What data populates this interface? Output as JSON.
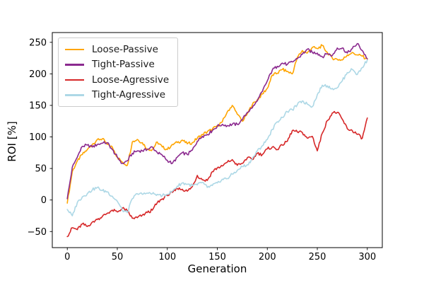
{
  "chart_data": {
    "type": "line",
    "title": "",
    "xlabel": "Generation",
    "ylabel": "ROI [%]",
    "xlim": [
      -15,
      315
    ],
    "ylim": [
      -75.5,
      265.5
    ],
    "grid": false,
    "legend_position": "upper-left",
    "xtick_values": [
      0,
      50,
      100,
      150,
      200,
      250,
      300
    ],
    "xtick_labels": [
      "0",
      "50",
      "100",
      "150",
      "200",
      "250",
      "300"
    ],
    "ytick_values": [
      -50,
      0,
      50,
      100,
      150,
      200,
      250
    ],
    "ytick_labels": [
      "−50",
      "0",
      "50",
      "100",
      "150",
      "200",
      "250"
    ],
    "x": [
      0,
      5,
      10,
      15,
      20,
      25,
      30,
      35,
      40,
      45,
      50,
      55,
      60,
      65,
      70,
      75,
      80,
      85,
      90,
      95,
      100,
      105,
      110,
      115,
      120,
      125,
      130,
      135,
      140,
      145,
      150,
      155,
      160,
      165,
      170,
      175,
      180,
      185,
      190,
      195,
      200,
      205,
      210,
      215,
      220,
      225,
      230,
      235,
      240,
      245,
      250,
      255,
      260,
      265,
      270,
      275,
      280,
      285,
      290,
      295,
      300
    ],
    "series": [
      {
        "name": "Loose-Passive",
        "color": "#ffa500",
        "values": [
          -5,
          45,
          62,
          72,
          80,
          88,
          96,
          97,
          88,
          84,
          68,
          60,
          55,
          92,
          96,
          91,
          81,
          80,
          92,
          84,
          80,
          88,
          91,
          95,
          89,
          91,
          98,
          104,
          108,
          112,
          118,
          124,
          140,
          150,
          136,
          125,
          137,
          151,
          159,
          168,
          177,
          198,
          201,
          207,
          204,
          200,
          226,
          237,
          233,
          242,
          240,
          245,
          234,
          225,
          223,
          222,
          230,
          234,
          230,
          228,
          223
        ]
      },
      {
        "name": "Tight-Passive",
        "color": "#8b2a8f",
        "values": [
          2,
          52,
          68,
          85,
          87,
          84,
          88,
          90,
          91,
          80,
          68,
          58,
          62,
          74,
          78,
          78,
          80,
          84,
          75,
          71,
          63,
          58,
          68,
          75,
          72,
          79,
          93,
          101,
          104,
          110,
          117,
          120,
          118,
          120,
          120,
          127,
          139,
          146,
          157,
          172,
          189,
          206,
          212,
          217,
          215,
          219,
          224,
          231,
          239,
          234,
          233,
          227,
          232,
          229,
          241,
          241,
          233,
          240,
          248,
          237,
          224
        ]
      },
      {
        "name": "Loose-Agressive",
        "color": "#d62728",
        "values": [
          -58,
          -44,
          -47,
          -38,
          -42,
          -35,
          -31,
          -26,
          -21,
          -16,
          -19,
          -13,
          -17,
          -29,
          -28,
          -24,
          -20,
          -16,
          -4,
          2,
          7,
          12,
          18,
          17,
          14,
          21,
          39,
          32,
          31,
          45,
          51,
          54,
          60,
          64,
          55,
          58,
          67,
          64,
          74,
          72,
          81,
          84,
          80,
          87,
          93,
          110,
          108,
          107,
          98,
          101,
          78,
          106,
          126,
          138,
          139,
          128,
          113,
          110,
          104,
          98,
          130
        ]
      },
      {
        "name": "Tight-Agressive",
        "color": "#add8e6",
        "values": [
          -15,
          -25,
          -4,
          5,
          10,
          16,
          20,
          15,
          13,
          6,
          -2,
          -16,
          -20,
          2,
          10,
          9,
          11,
          10,
          9,
          7,
          9,
          14,
          22,
          27,
          25,
          23,
          24,
          28,
          20,
          23,
          27,
          33,
          34,
          41,
          47,
          53,
          56,
          65,
          78,
          86,
          96,
          112,
          124,
          131,
          140,
          143,
          151,
          157,
          152,
          148,
          167,
          182,
          181,
          177,
          178,
          189,
          202,
          207,
          199,
          210,
          222
        ]
      }
    ]
  }
}
